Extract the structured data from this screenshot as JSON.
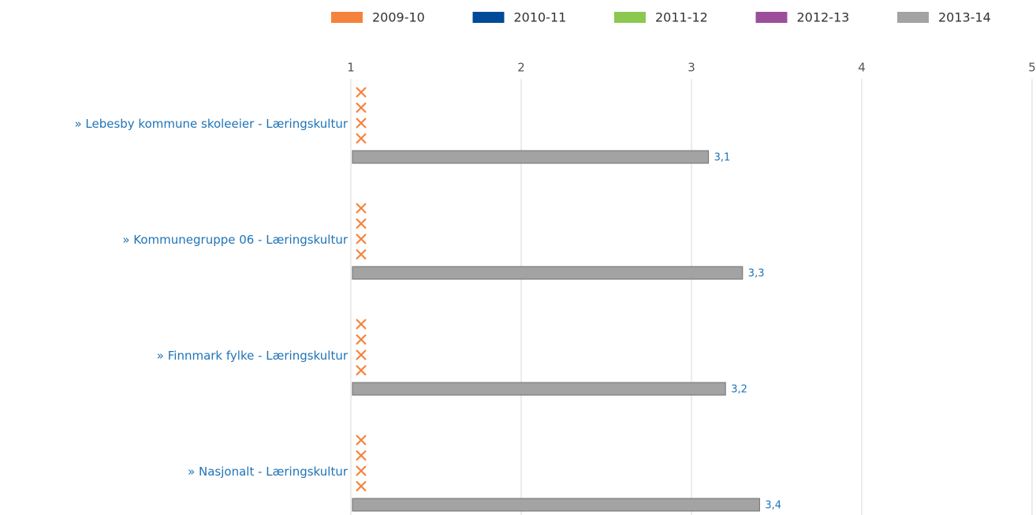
{
  "chart_data": {
    "type": "bar",
    "orientation": "horizontal",
    "categories": [
      "» Lebesby kommune skoleeier - Læringskultur",
      "» Kommunegruppe 06 - Læringskultur",
      "» Finnmark fylke - Læringskultur",
      "» Nasjonalt - Læringskultur"
    ],
    "series": [
      {
        "name": "2009-10",
        "color": "#f5823c",
        "values": [
          null,
          null,
          null,
          null
        ]
      },
      {
        "name": "2010-11",
        "color": "#004a97",
        "values": [
          null,
          null,
          null,
          null
        ]
      },
      {
        "name": "2011-12",
        "color": "#8cc850",
        "values": [
          null,
          null,
          null,
          null
        ]
      },
      {
        "name": "2012-13",
        "color": "#9b4f9b",
        "values": [
          null,
          null,
          null,
          null
        ]
      },
      {
        "name": "2013-14",
        "color": "#a3a3a3",
        "values": [
          3.1,
          3.3,
          3.2,
          3.4
        ],
        "value_labels": [
          "3,1",
          "3,3",
          "3,2",
          "3,4"
        ]
      }
    ],
    "xlim": [
      1,
      5
    ],
    "xticks": [
      1,
      2,
      3,
      4,
      5
    ],
    "grid": true,
    "legend": "top"
  }
}
